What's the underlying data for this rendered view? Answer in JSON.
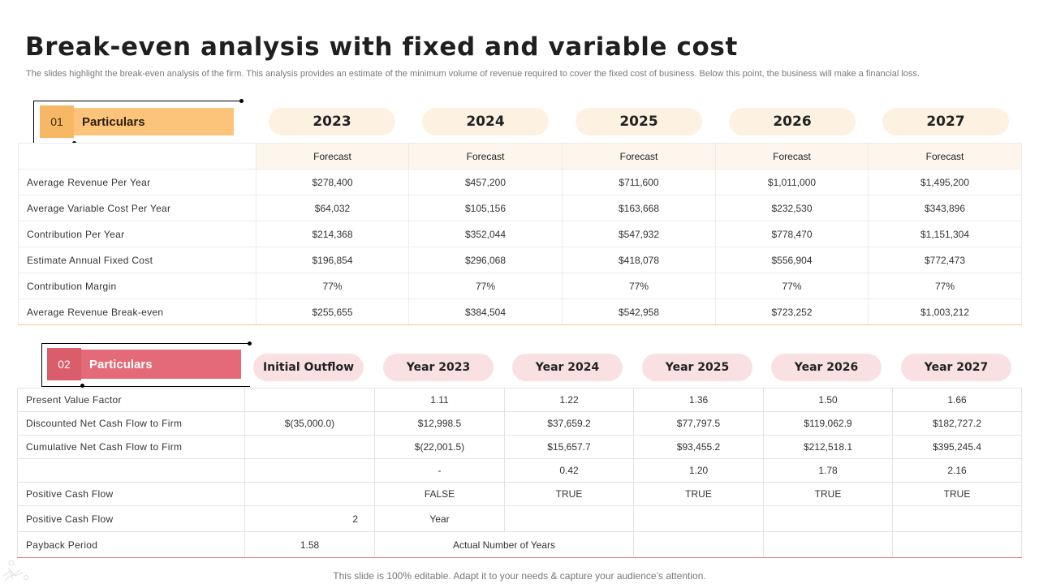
{
  "title": "Break-even analysis with fixed and variable cost",
  "subtitle": "The slides highlight the break-even analysis of the firm. This analysis provides an estimate of the minimum volume of revenue required to cover the fixed cost of business. Below this point, the business will make a financial loss.",
  "section1": {
    "number": "01",
    "label": "Particulars",
    "accent": "#fcc47a",
    "accent_dark": "#f7b865",
    "years": [
      "2023",
      "2024",
      "2025",
      "2026",
      "2027"
    ],
    "forecast_label": "Forecast",
    "rows": [
      {
        "label": "Average Revenue Per Year",
        "values": [
          "$278,400",
          "$457,200",
          "$711,600",
          "$1,011,000",
          "$1,495,200"
        ]
      },
      {
        "label": "Average Variable Cost Per Year",
        "values": [
          "$64,032",
          "$105,156",
          "$163,668",
          "$232,530",
          "$343,896"
        ]
      },
      {
        "label": "Contribution  Per Year",
        "values": [
          "$214,368",
          "$352,044",
          "$547,932",
          "$778,470",
          "$1,151,304"
        ]
      },
      {
        "label": "Estimate Annual Fixed Cost",
        "values": [
          "$196,854",
          "$296,068",
          "$418,078",
          "$556,904",
          "$772,473"
        ]
      },
      {
        "label": "Contribution  Margin",
        "values": [
          "77%",
          "77%",
          "77%",
          "77%",
          "77%"
        ]
      },
      {
        "label": "Average Revenue Break-even",
        "values": [
          "$255,655",
          "$384,504",
          "$542,958",
          "$723,252",
          "$1,003,212"
        ]
      }
    ]
  },
  "section2": {
    "number": "02",
    "label": "Particulars",
    "accent": "#e46a77",
    "accent_dark": "#d95d6b",
    "headers": [
      "Initial Outflow",
      "Year 2023",
      "Year 2024",
      "Year 2025",
      "Year 2026",
      "Year 2027"
    ],
    "rows": {
      "pv_factor": {
        "label": "Present Value Factor",
        "values": [
          "",
          "1.11",
          "1.22",
          "1.36",
          "1.50",
          "1.66"
        ]
      },
      "discounted": {
        "label": "Discounted  Net Cash Flow to Firm",
        "values": [
          "$(35,000.0)",
          "$12,998.5",
          "$37,659.2",
          "$77,797.5",
          "$119,062.9",
          "$182,727.2"
        ]
      },
      "cumulative": {
        "label": "Cumulative Net Cash Flow to Firm",
        "values": [
          "",
          "$(22,001.5)",
          "$15,657.7",
          "$93,455.2",
          "$212,518.1",
          "$395,245.4"
        ]
      },
      "ratio": {
        "label": "",
        "values": [
          "",
          "-",
          "0.42",
          "1.20",
          "1.78",
          "2.16"
        ]
      },
      "positive1": {
        "label": "Positive Cash Flow",
        "values": [
          "",
          "FALSE",
          "TRUE",
          "TRUE",
          "TRUE",
          "TRUE"
        ]
      },
      "positive2": {
        "label": "Positive Cash Flow",
        "value_outflow": "2",
        "value_2023": "Year"
      },
      "payback": {
        "label": "Payback Period",
        "value_outflow": "1.58",
        "note": "Actual Number of Years"
      }
    }
  },
  "footer": "This slide is 100% editable. Adapt it to your needs & capture your audience’s attention."
}
